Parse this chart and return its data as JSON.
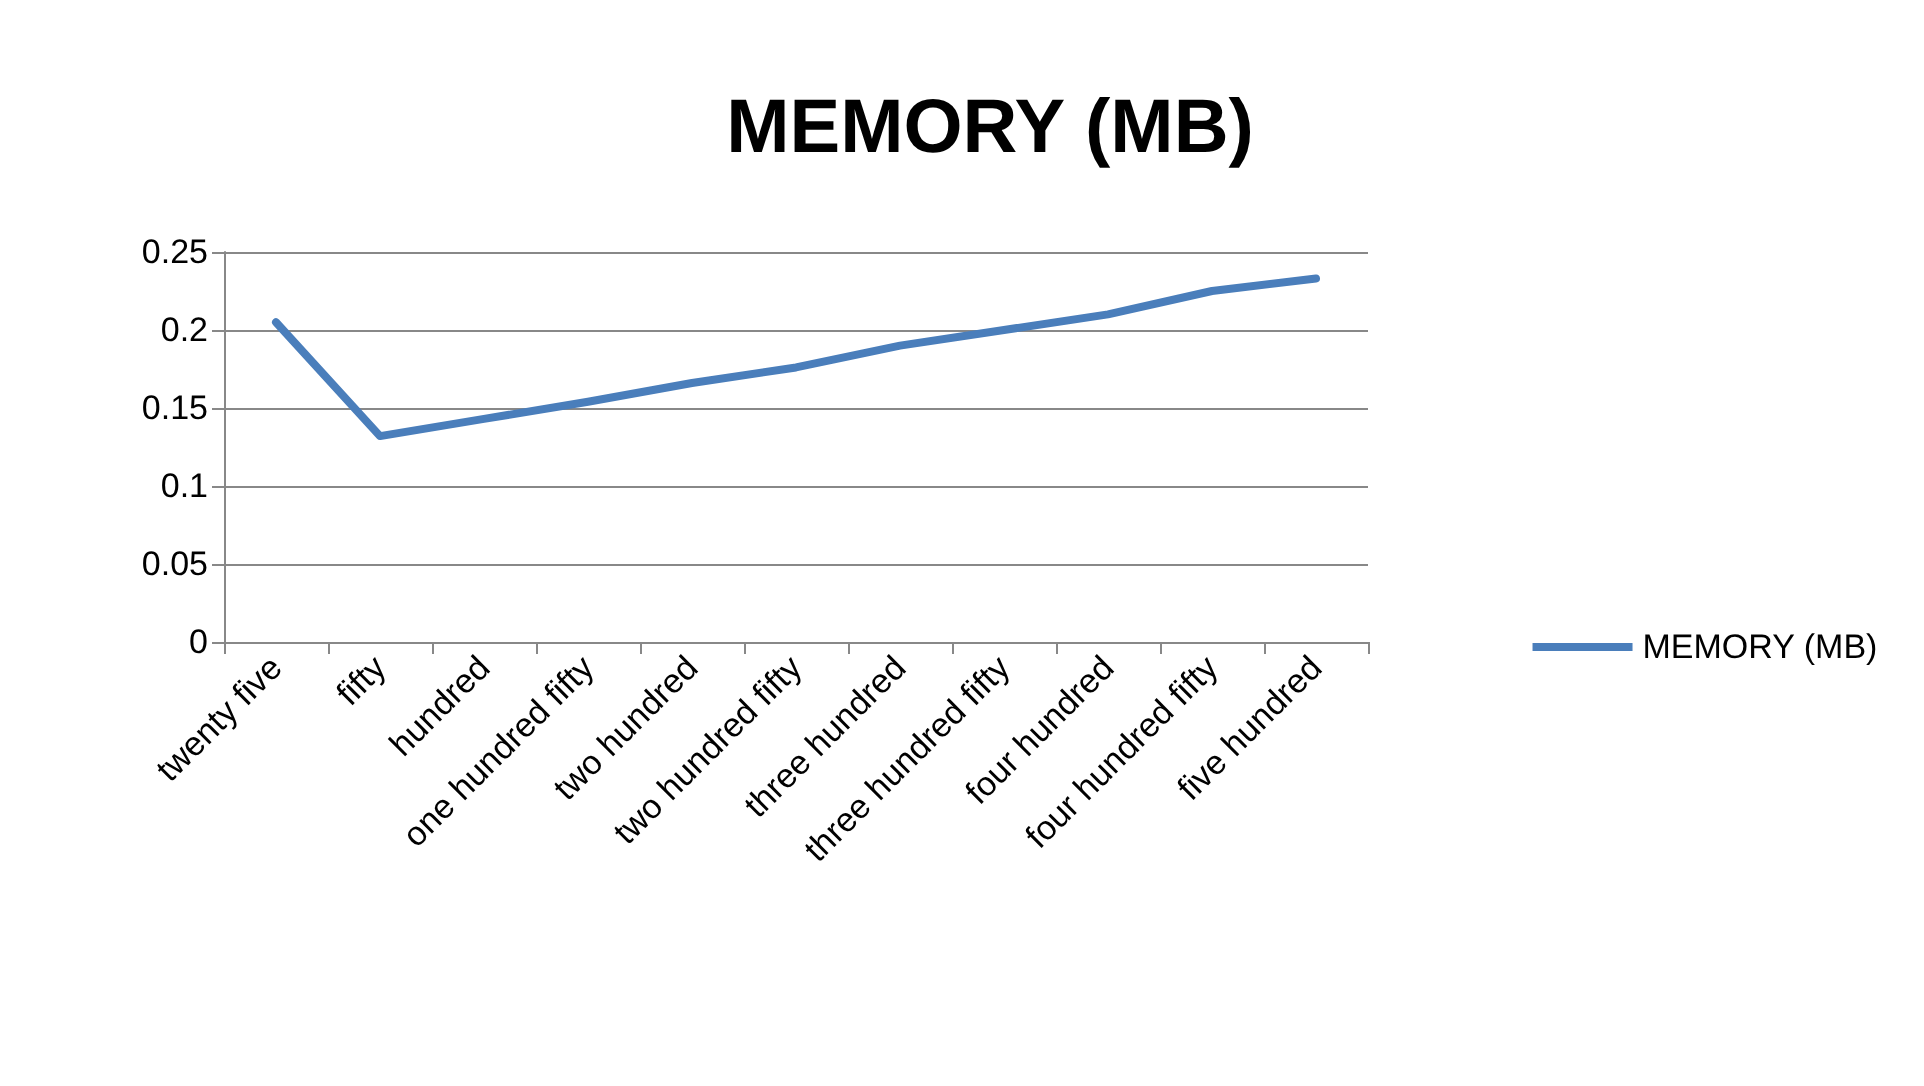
{
  "chart_data": {
    "type": "line",
    "title": "MEMORY (MB)",
    "categories": [
      "twenty five",
      "fifty",
      "hundred",
      "one hundred fifty",
      "two hundred",
      "two hundred fifty",
      "three hundred",
      "three hundred fifty",
      "four hundred",
      "four hundred fifty",
      "five hundred"
    ],
    "series": [
      {
        "name": "MEMORY (MB)",
        "color": "#4a7ebb",
        "values": [
          0.205,
          0.132,
          0.143,
          0.154,
          0.166,
          0.176,
          0.19,
          0.2,
          0.21,
          0.225,
          0.233
        ]
      }
    ],
    "ylim": [
      0,
      0.25
    ],
    "yticks": [
      0,
      0.05,
      0.1,
      0.15,
      0.2,
      0.25
    ],
    "grid": "y",
    "legend": "right",
    "marker": "none",
    "line_style": "solid"
  }
}
